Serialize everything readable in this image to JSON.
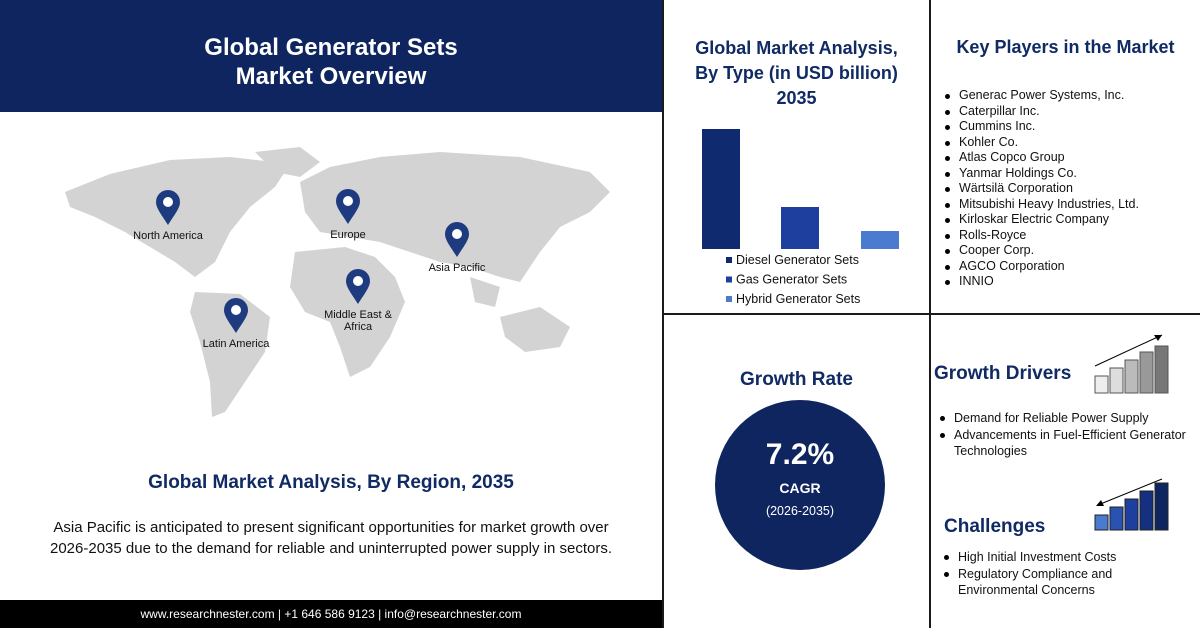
{
  "header": {
    "title": [
      "Global Generator Sets",
      "Market Overview"
    ]
  },
  "map": {
    "regions": [
      "North America",
      "Europe",
      "Asia Pacific",
      "Middle East & Africa",
      "Latin America"
    ]
  },
  "region_section": {
    "title": "Global Market Analysis, By Region, 2035",
    "text": [
      "Asia Pacific is anticipated to present significant opportunities for market growth over",
      "2026-2035 due to the demand for reliable and uninterrupted power supply in sectors."
    ]
  },
  "footer": "www.researchnester.com | +1 646 586 9123 | info@researchnester.com",
  "chart_data": {
    "type": "bar",
    "title": [
      "Global Market Analysis,",
      "By Type (in USD billion)",
      "2035"
    ],
    "categories": [
      "Diesel Generator Sets",
      "Gas Generator Sets",
      "Hybrid Generator Sets"
    ],
    "values": [
      120,
      42,
      18
    ],
    "colors": [
      "#0f2a6e",
      "#1f3f9e",
      "#4a7bd0"
    ]
  },
  "key_players": {
    "title": "Key Players in the Market",
    "items": [
      "Generac Power Systems, Inc.",
      "Caterpillar Inc.",
      "Cummins Inc.",
      "Kohler Co.",
      "Atlas Copco Group",
      "Yanmar Holdings Co.",
      "Wärtsilä Corporation",
      "Mitsubishi Heavy Industries, Ltd.",
      "Kirloskar Electric Company",
      "Rolls-Royce",
      "Cooper Corp.",
      "AGCO Corporation",
      "INNIO"
    ]
  },
  "growth_rate": {
    "title": "Growth Rate",
    "value": "7.2%",
    "label": "CAGR",
    "period": "(2026-2035)"
  },
  "growth_drivers": {
    "title": "Growth Drivers",
    "items": [
      "Demand for Reliable Power Supply",
      "Advancements in Fuel-Efficient Generator Technologies"
    ]
  },
  "challenges": {
    "title": "Challenges",
    "items": [
      "High Initial Investment Costs",
      "Regulatory Compliance and Environmental Concerns"
    ]
  }
}
